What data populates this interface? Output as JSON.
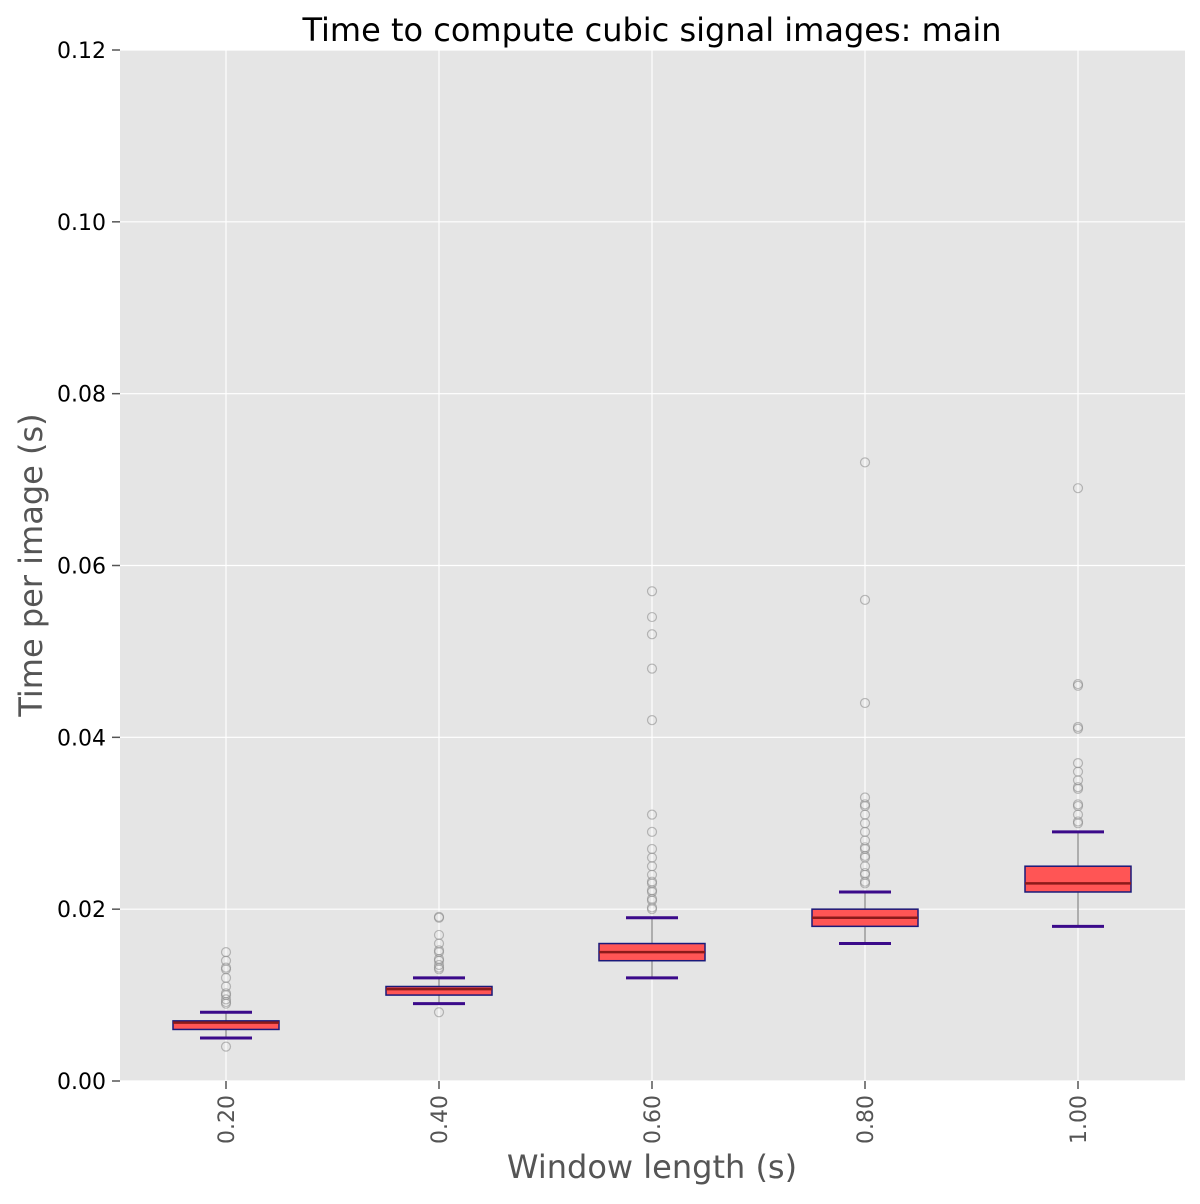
{
  "chart_data": {
    "type": "boxplot",
    "title": "Time to compute cubic signal images: main",
    "xlabel": "Window length (s)",
    "ylabel": "Time per image (s)",
    "ylim": [
      0,
      0.12
    ],
    "yticks": [
      0.0,
      0.02,
      0.04,
      0.06,
      0.08,
      0.1,
      0.12
    ],
    "ytick_labels": [
      "0.00",
      "0.02",
      "0.04",
      "0.06",
      "0.08",
      "0.10",
      "0.12"
    ],
    "categories": [
      "0.20",
      "0.40",
      "0.60",
      "0.80",
      "1.00"
    ],
    "grid": true,
    "colors": {
      "background": "#e5e5e5",
      "grid": "#ffffff",
      "box_fill": "#ff5555",
      "box_edge": "#1a1a7a",
      "median": "#8b1a1a",
      "whisker_cap": "#3b0a8a",
      "whisker_line": "#999999",
      "outlier": "#888888"
    },
    "boxes": [
      {
        "label": "0.20",
        "whisker_low": 0.005,
        "q1": 0.006,
        "median": 0.0068,
        "q3": 0.007,
        "whisker_high": 0.008,
        "outliers": [
          0.004,
          0.009,
          0.0092,
          0.0095,
          0.01,
          0.0102,
          0.011,
          0.012,
          0.013,
          0.0132,
          0.014,
          0.015
        ]
      },
      {
        "label": "0.40",
        "whisker_low": 0.009,
        "q1": 0.01,
        "median": 0.0107,
        "q3": 0.011,
        "whisker_high": 0.012,
        "outliers": [
          0.008,
          0.013,
          0.0132,
          0.0135,
          0.014,
          0.0142,
          0.015,
          0.0152,
          0.016,
          0.017,
          0.019,
          0.0191
        ]
      },
      {
        "label": "0.60",
        "whisker_low": 0.012,
        "q1": 0.014,
        "median": 0.015,
        "q3": 0.016,
        "whisker_high": 0.019,
        "outliers": [
          0.02,
          0.0202,
          0.021,
          0.0212,
          0.022,
          0.0222,
          0.023,
          0.0232,
          0.024,
          0.025,
          0.026,
          0.027,
          0.029,
          0.031,
          0.042,
          0.048,
          0.052,
          0.054,
          0.057
        ]
      },
      {
        "label": "0.80",
        "whisker_low": 0.016,
        "q1": 0.018,
        "median": 0.019,
        "q3": 0.02,
        "whisker_high": 0.022,
        "outliers": [
          0.023,
          0.0232,
          0.024,
          0.0242,
          0.025,
          0.026,
          0.0262,
          0.027,
          0.0272,
          0.028,
          0.029,
          0.03,
          0.031,
          0.032,
          0.0322,
          0.033,
          0.044,
          0.056,
          0.072
        ]
      },
      {
        "label": "1.00",
        "whisker_low": 0.018,
        "q1": 0.022,
        "median": 0.023,
        "q3": 0.025,
        "whisker_high": 0.029,
        "outliers": [
          0.03,
          0.0302,
          0.031,
          0.032,
          0.0322,
          0.034,
          0.0342,
          0.035,
          0.036,
          0.037,
          0.041,
          0.0412,
          0.046,
          0.0462,
          0.069
        ]
      }
    ]
  }
}
